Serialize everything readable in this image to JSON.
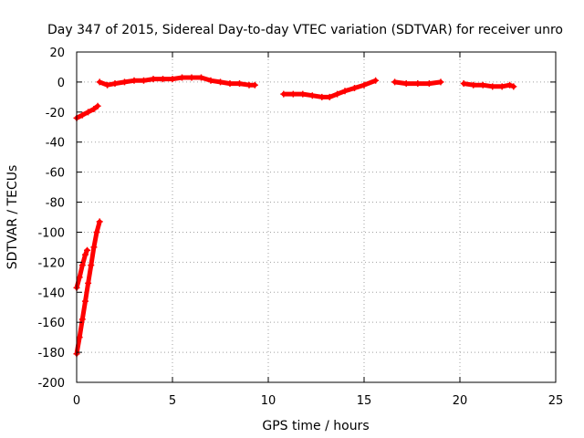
{
  "chart_data": {
    "type": "scatter",
    "title": "Day 347 of 2015, Sidereal Day-to-day VTEC variation (SDTVAR) for receiver unro",
    "xlabel": "GPS time / hours",
    "ylabel": "SDTVAR / TECUs",
    "xlim": [
      0,
      25
    ],
    "ylim": [
      -200,
      20
    ],
    "x_ticks": [
      "0",
      "5",
      "10",
      "15",
      "20",
      "25"
    ],
    "y_ticks": [
      "20",
      "0",
      "-20",
      "-40",
      "-60",
      "-80",
      "-100",
      "-120",
      "-140",
      "-160",
      "-180",
      "-200"
    ],
    "grid": true,
    "legend": "none",
    "marker_color": "#ff0000",
    "series": [
      {
        "segments": [
          [
            [
              0.0,
              -24
            ],
            [
              0.3,
              -22
            ],
            [
              0.6,
              -20
            ],
            [
              0.9,
              -18
            ],
            [
              1.1,
              -16
            ]
          ],
          [
            [
              0.0,
              -181
            ],
            [
              0.15,
              -170
            ],
            [
              0.3,
              -158
            ],
            [
              0.45,
              -146
            ],
            [
              0.6,
              -134
            ],
            [
              0.75,
              -122
            ],
            [
              0.9,
              -110
            ],
            [
              1.05,
              -100
            ],
            [
              1.2,
              -93
            ]
          ],
          [
            [
              0.0,
              -137
            ],
            [
              0.15,
              -130
            ],
            [
              0.3,
              -122
            ],
            [
              0.45,
              -115
            ],
            [
              0.55,
              -112
            ]
          ],
          [
            [
              1.2,
              0
            ],
            [
              1.6,
              -2
            ],
            [
              2.0,
              -1
            ],
            [
              2.5,
              0
            ],
            [
              3.0,
              1
            ],
            [
              3.5,
              1
            ],
            [
              4.0,
              2
            ],
            [
              4.5,
              2
            ],
            [
              5.0,
              2
            ],
            [
              5.5,
              3
            ],
            [
              6.0,
              3
            ],
            [
              6.5,
              3
            ],
            [
              7.0,
              1
            ],
            [
              7.5,
              0
            ],
            [
              8.0,
              -1
            ],
            [
              8.5,
              -1
            ],
            [
              9.0,
              -2
            ],
            [
              9.3,
              -2
            ]
          ],
          [
            [
              10.8,
              -8
            ],
            [
              11.3,
              -8
            ],
            [
              11.8,
              -8
            ],
            [
              12.3,
              -9
            ],
            [
              12.8,
              -10
            ],
            [
              13.2,
              -10
            ],
            [
              13.6,
              -8
            ],
            [
              14.0,
              -6
            ],
            [
              14.5,
              -4
            ],
            [
              15.0,
              -2
            ],
            [
              15.6,
              1
            ]
          ],
          [
            [
              16.6,
              0
            ],
            [
              17.2,
              -1
            ],
            [
              17.8,
              -1
            ],
            [
              18.4,
              -1
            ],
            [
              19.0,
              0
            ]
          ],
          [
            [
              20.2,
              -1
            ],
            [
              20.7,
              -2
            ],
            [
              21.2,
              -2
            ],
            [
              21.7,
              -3
            ],
            [
              22.2,
              -3
            ],
            [
              22.6,
              -2
            ],
            [
              22.8,
              -3
            ]
          ]
        ]
      }
    ]
  }
}
